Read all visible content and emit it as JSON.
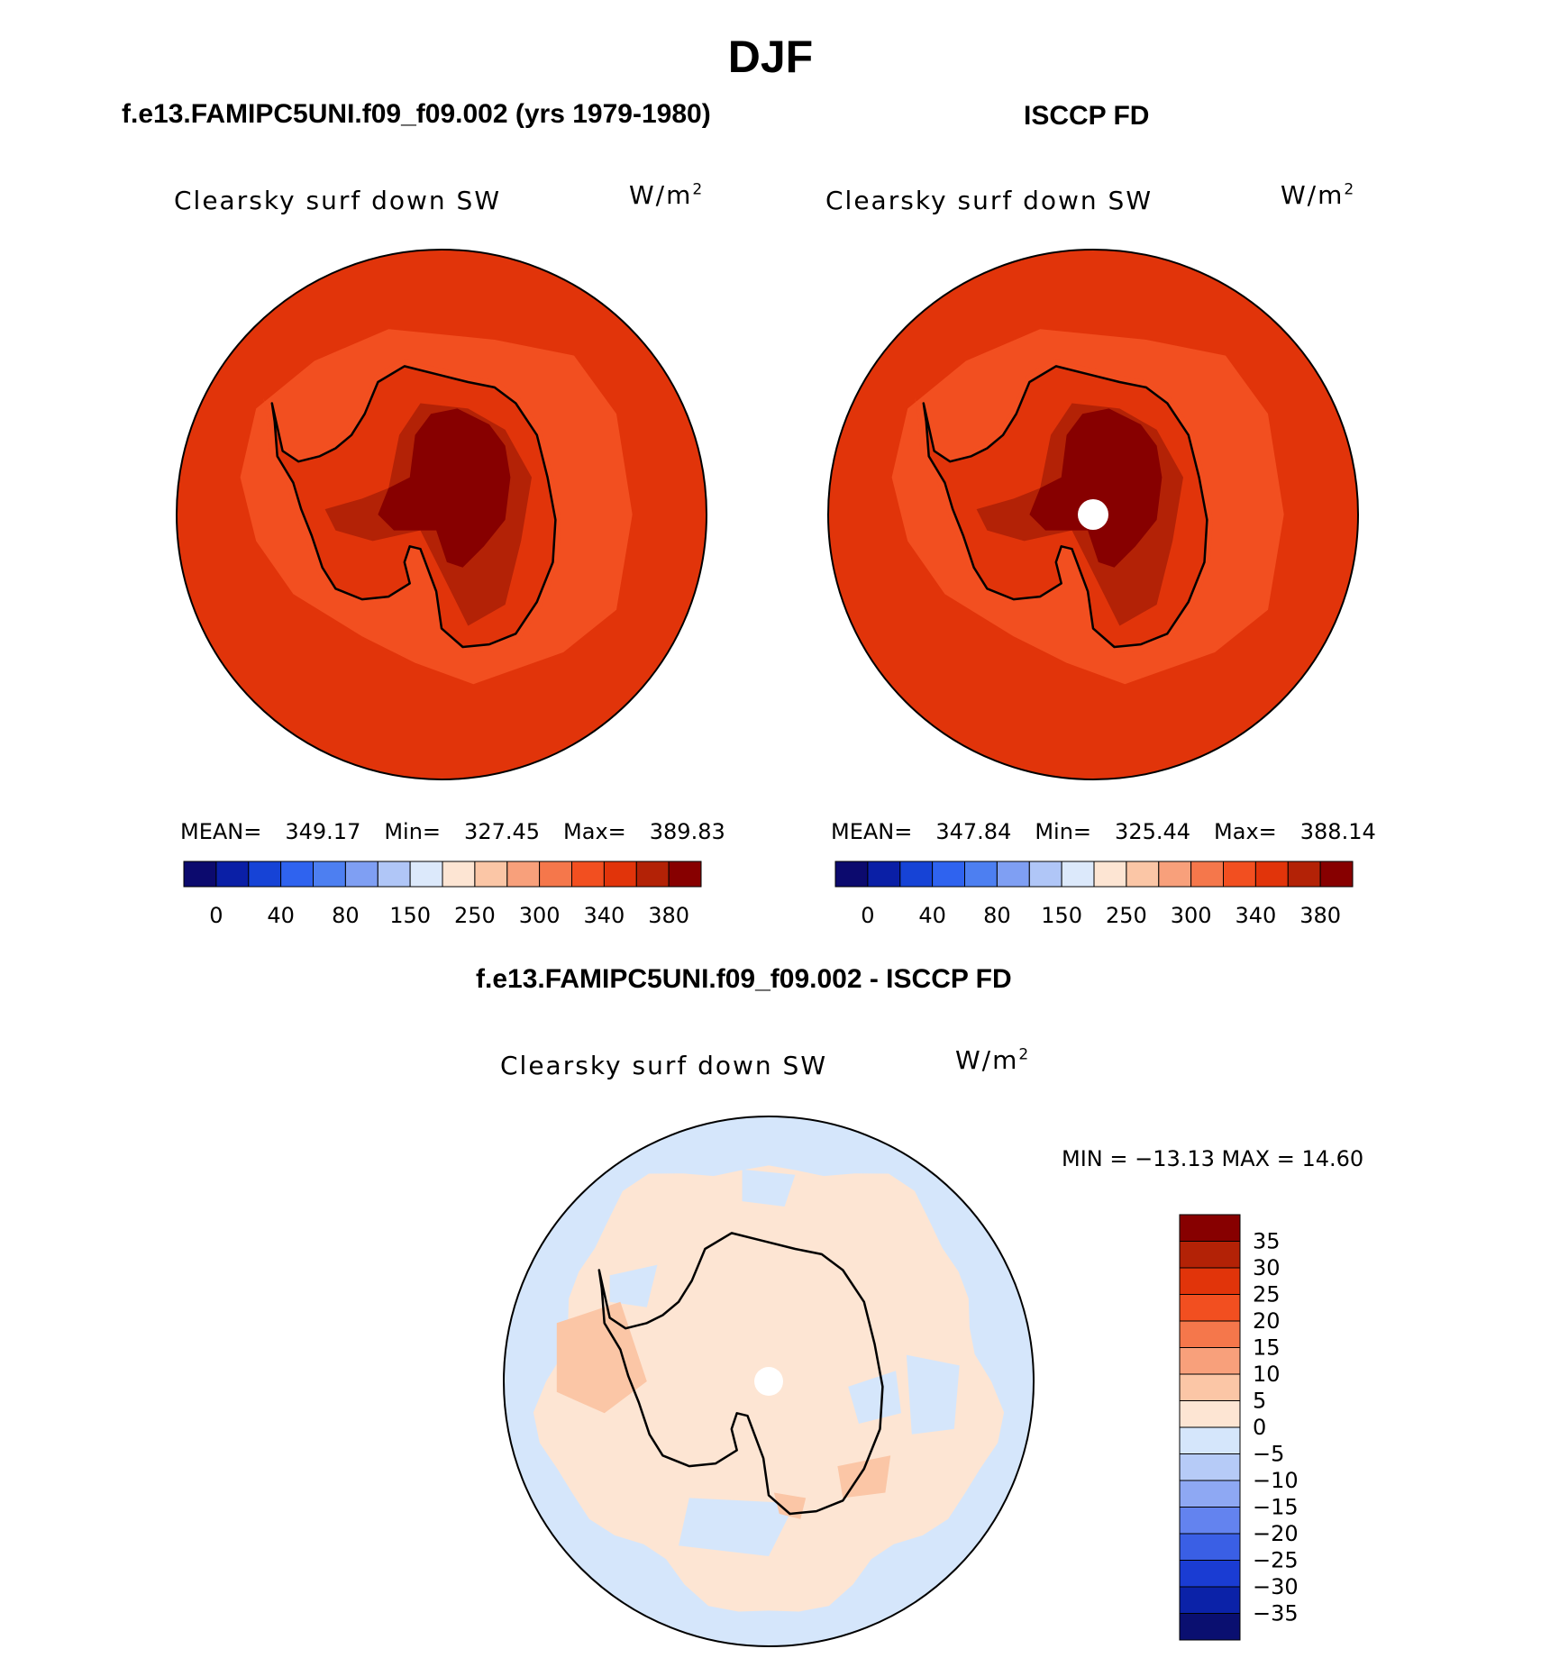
{
  "figure": {
    "title": "DJF",
    "panels": [
      {
        "id": "model",
        "header": "f.e13.FAMIPC5UNI.f09_f09.002 (yrs 1979-1980)",
        "variable": "Clearsky surf down SW",
        "units_base": "W/m",
        "units_exp": "2",
        "stats": {
          "mean_label": "MEAN=",
          "mean": "349.17",
          "min_label": "Min=",
          "min": "327.45",
          "max_label": "Max=",
          "max": "389.83"
        }
      },
      {
        "id": "obs",
        "header": "ISCCP FD",
        "variable": "Clearsky surf down SW",
        "units_base": "W/m",
        "units_exp": "2",
        "stats": {
          "mean_label": "MEAN=",
          "mean": "347.84",
          "min_label": "Min=",
          "min": "325.44",
          "max_label": "Max=",
          "max": "388.14"
        }
      },
      {
        "id": "diff",
        "header": "f.e13.FAMIPC5UNI.f09_f09.002 - ISCCP FD",
        "variable": "Clearsky surf down SW",
        "units_base": "W/m",
        "units_exp": "2",
        "minmax": "MIN = −13.13 MAX =  14.60"
      }
    ]
  },
  "chart_data": [
    {
      "type": "heatmap",
      "title": "f.e13.FAMIPC5UNI.f09_f09.002 (yrs 1979-1980)",
      "variable": "Clearsky surf down SW",
      "units": "W/m2",
      "projection": "south polar stereographic",
      "mean": 349.17,
      "min": 327.45,
      "max": 389.83,
      "colorbar_ticks": [
        "0",
        "40",
        "80",
        "150",
        "250",
        "300",
        "340",
        "380"
      ]
    },
    {
      "type": "heatmap",
      "title": "ISCCP FD",
      "variable": "Clearsky surf down SW",
      "units": "W/m2",
      "projection": "south polar stereographic",
      "mean": 347.84,
      "min": 325.44,
      "max": 388.14,
      "colorbar_ticks": [
        "0",
        "40",
        "80",
        "150",
        "250",
        "300",
        "340",
        "380"
      ]
    },
    {
      "type": "heatmap",
      "title": "f.e13.FAMIPC5UNI.f09_f09.002 - ISCCP FD",
      "variable": "Clearsky surf down SW",
      "units": "W/m2",
      "projection": "south polar stereographic",
      "min": -13.13,
      "max": 14.6,
      "colorbar_ticks": [
        "35",
        "30",
        "25",
        "20",
        "15",
        "10",
        "5",
        "0",
        "−5",
        "−10",
        "−15",
        "−20",
        "−25",
        "−30",
        "−35"
      ]
    }
  ],
  "colors": {
    "abs_scale": [
      "#0c0a6e",
      "#0a1fa6",
      "#1643d6",
      "#2f63ef",
      "#4d7ff1",
      "#7f9ff3",
      "#b0c6f7",
      "#dce9fb",
      "#fde5d3",
      "#fbc6a6",
      "#f8a07b",
      "#f5774b",
      "#f24f20",
      "#e1340a",
      "#b32206",
      "#870000"
    ],
    "diff_scale": [
      "#870000",
      "#b32206",
      "#e1340a",
      "#f24f20",
      "#f5774b",
      "#f8a07b",
      "#fbc6a6",
      "#fde5d3",
      "#d5e6fb",
      "#b6cbf7",
      "#8ea8f3",
      "#6383ef",
      "#3a5fe5",
      "#1a3cd3",
      "#0b22a8",
      "#0a0f70"
    ],
    "land_outline": "#000000"
  }
}
